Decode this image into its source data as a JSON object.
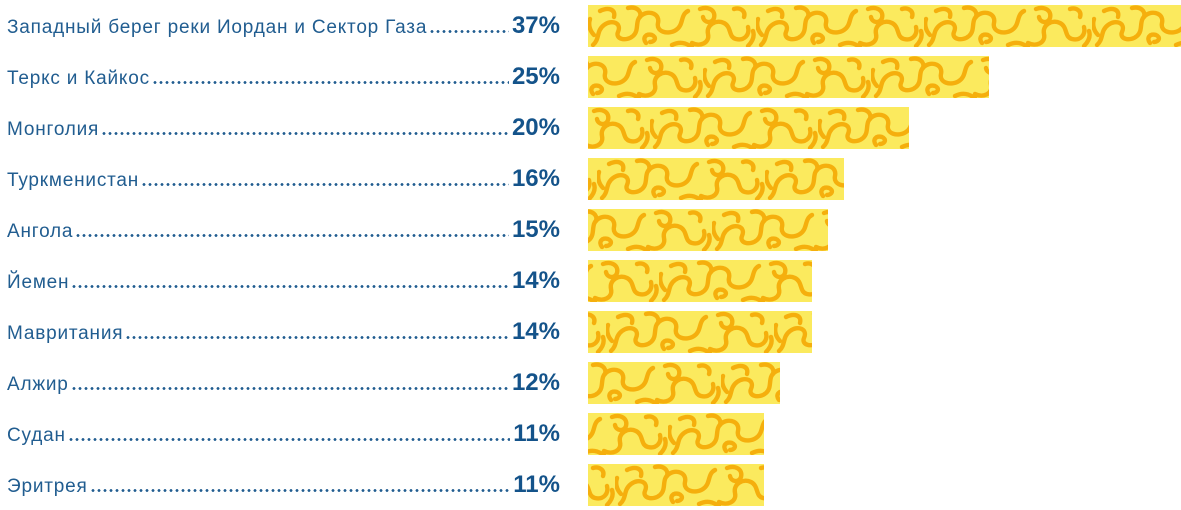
{
  "chart_data": {
    "type": "bar",
    "orientation": "horizontal",
    "title": "",
    "xlabel": "",
    "ylabel": "",
    "unit": "%",
    "max_value": 37,
    "xlim": [
      0,
      37
    ],
    "grid": false,
    "legend": false,
    "categories": [
      "Западный берег реки Иордан и Сектор Газа",
      "Теркс и Кайкос",
      "Монголия",
      "Туркменистан",
      "Ангола",
      "Йемен",
      "Мавритания",
      "Алжир",
      "Судан",
      "Эритрея"
    ],
    "values": [
      37,
      25,
      20,
      16,
      15,
      14,
      14,
      12,
      11,
      11
    ],
    "value_labels": [
      "37%",
      "25%",
      "20%",
      "16%",
      "15%",
      "14%",
      "14%",
      "12%",
      "11%",
      "11%"
    ]
  },
  "style": {
    "label_color": "#215d90",
    "value_color": "#14538a",
    "bar_fill": "#fbea5e",
    "bar_doodle_color": "#f5af0d",
    "leader_dot_color": "#215d90"
  }
}
